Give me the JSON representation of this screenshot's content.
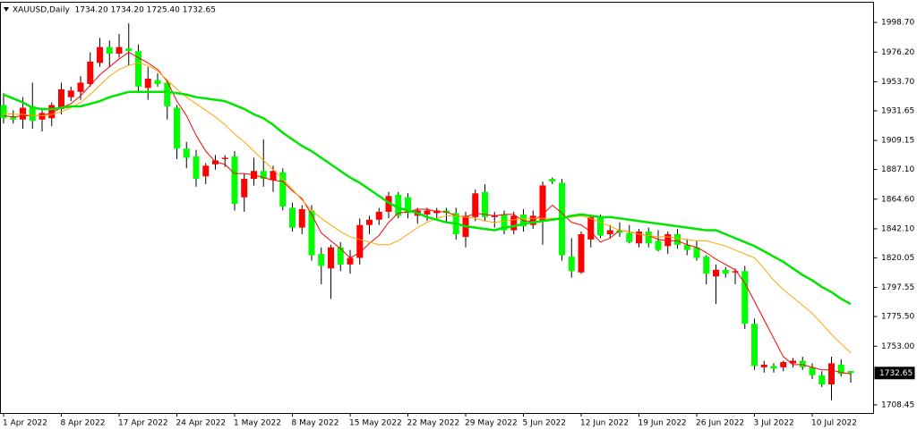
{
  "chart_data": {
    "type": "candlestick",
    "title": "XAUUSD,Daily  1734.20 1734.20 1725.40 1732.65",
    "categories": [
      "1 Apr 2022",
      null,
      null,
      null,
      null,
      null,
      "8 Apr 2022",
      null,
      null,
      null,
      null,
      null,
      "17 Apr 2022",
      null,
      null,
      null,
      null,
      null,
      "24 Apr 2022",
      null,
      null,
      null,
      null,
      null,
      "1 May 2022",
      null,
      null,
      null,
      null,
      null,
      "8 May 2022",
      null,
      null,
      null,
      null,
      null,
      "15 May 2022",
      null,
      null,
      null,
      null,
      null,
      "22 May 2022",
      null,
      null,
      null,
      null,
      null,
      "29 May 2022",
      null,
      null,
      null,
      null,
      null,
      "5 Jun 2022",
      null,
      null,
      null,
      null,
      null,
      "12 Jun 2022",
      null,
      null,
      null,
      null,
      null,
      "19 Jun 2022",
      null,
      null,
      null,
      null,
      null,
      "26 Jun 2022",
      null,
      null,
      null,
      null,
      null,
      "3 Jul 2022",
      null,
      null,
      null,
      null,
      null,
      "10 Jul 2022",
      null,
      null,
      null,
      null
    ],
    "open": [
      1936,
      1927,
      1925,
      1935,
      1925,
      1926,
      1933,
      1942,
      1946,
      1952,
      1968,
      1980,
      1975,
      1979,
      1977,
      1949,
      1955,
      1953,
      1934,
      1903,
      1897,
      1882,
      1891,
      1895,
      1897,
      1866,
      1880,
      1886,
      1879,
      1885,
      1858,
      1843,
      1856,
      1823,
      1812,
      1828,
      1815,
      1820,
      1845,
      1849,
      1855,
      1868,
      1866,
      1852,
      1853,
      1854,
      1856,
      1854,
      1836,
      1851,
      1870,
      1851,
      1853,
      1841,
      1853,
      1845,
      1848,
      1880,
      1877,
      1821,
      1809,
      1834,
      1851,
      1838,
      1841,
      1839,
      1831,
      1840,
      1833,
      1829,
      1838,
      1830,
      1828,
      1821,
      1806,
      1811,
      1809,
      1810,
      1770,
      1737,
      1738,
      1737,
      1740,
      1742,
      1737,
      1731,
      1724,
      1739,
      1734.2
    ],
    "high": [
      1945,
      1932,
      1942,
      1953,
      1934,
      1938,
      1953,
      1950,
      1958,
      1976,
      1987,
      1985,
      1990,
      1998,
      1982,
      1965,
      1960,
      1955,
      1936,
      1908,
      1902,
      1892,
      1898,
      1898,
      1901,
      1884,
      1896,
      1910,
      1890,
      1888,
      1862,
      1860,
      1860,
      1828,
      1830,
      1832,
      1826,
      1850,
      1852,
      1858,
      1870,
      1870,
      1869,
      1858,
      1858,
      1858,
      1858,
      1858,
      1855,
      1872,
      1876,
      1855,
      1856,
      1855,
      1857,
      1856,
      1878,
      1881,
      1880,
      1835,
      1840,
      1853,
      1853,
      1845,
      1847,
      1845,
      1842,
      1843,
      1841,
      1840,
      1842,
      1834,
      1833,
      1822,
      1815,
      1813,
      1812,
      1814,
      1774,
      1742,
      1740,
      1742,
      1744,
      1745,
      1740,
      1734,
      1745,
      1743,
      1734.2
    ],
    "low": [
      1922,
      1922,
      1918,
      1918,
      1916,
      1920,
      1929,
      1939,
      1940,
      1950,
      1965,
      1965,
      1972,
      1966,
      1945,
      1940,
      1950,
      1925,
      1895,
      1888,
      1874,
      1876,
      1887,
      1889,
      1856,
      1855,
      1875,
      1874,
      1870,
      1856,
      1840,
      1838,
      1818,
      1800,
      1789,
      1810,
      1808,
      1815,
      1838,
      1845,
      1850,
      1850,
      1850,
      1846,
      1848,
      1849,
      1847,
      1834,
      1828,
      1848,
      1848,
      1843,
      1838,
      1838,
      1840,
      1842,
      1830,
      1876,
      1818,
      1805,
      1808,
      1828,
      1835,
      1835,
      1836,
      1831,
      1828,
      1828,
      1825,
      1823,
      1827,
      1822,
      1818,
      1800,
      1785,
      1805,
      1800,
      1766,
      1735,
      1733,
      1733,
      1734,
      1737,
      1735,
      1728,
      1722,
      1712,
      1730,
      1725.4
    ],
    "close": [
      1926,
      1925,
      1934,
      1924,
      1930,
      1936,
      1948,
      1947,
      1953,
      1969,
      1980,
      1975,
      1980,
      1977,
      1950,
      1956,
      1952,
      1935,
      1903,
      1896,
      1880,
      1890,
      1894,
      1896,
      1861,
      1880,
      1886,
      1880,
      1886,
      1859,
      1843,
      1857,
      1822,
      1814,
      1828,
      1815,
      1820,
      1845,
      1849,
      1855,
      1867,
      1852,
      1854,
      1856,
      1856,
      1856,
      1854,
      1838,
      1852,
      1869,
      1851,
      1852,
      1841,
      1852,
      1844,
      1852,
      1875,
      1878,
      1822,
      1810,
      1838,
      1851,
      1837,
      1841,
      1839,
      1832,
      1840,
      1831,
      1826,
      1838,
      1830,
      1826,
      1820,
      1808,
      1811,
      1808,
      1810,
      1770,
      1738,
      1739,
      1736,
      1741,
      1742,
      1737,
      1731,
      1724,
      1740,
      1732,
      1732.65
    ],
    "bull_color": "#ff0000",
    "bear_color": "#00ff00",
    "wick_color": "#000000",
    "overlays": [
      {
        "color": "#ff0000",
        "values": [
          1928,
          1927,
          1928,
          1928,
          1928,
          1930,
          1934,
          1937,
          1943,
          1951,
          1959,
          1965,
          1971,
          1976,
          1972,
          1968,
          1963,
          1954,
          1939,
          1928,
          1913,
          1901,
          1893,
          1891,
          1884,
          1884,
          1883,
          1881,
          1879,
          1878,
          1871,
          1865,
          1853,
          1839,
          1833,
          1827,
          1820,
          1824,
          1831,
          1837,
          1847,
          1854,
          1855,
          1857,
          1857,
          1855,
          1855,
          1852,
          1851,
          1854,
          1853,
          1852,
          1853,
          1853,
          1848,
          1848,
          1853,
          1860,
          1854,
          1847,
          1845,
          1840,
          1832,
          1835,
          1841,
          1840,
          1838,
          1837,
          1834,
          1833,
          1833,
          1830,
          1828,
          1824,
          1819,
          1815,
          1811,
          1801,
          1787,
          1773,
          1759,
          1745,
          1739,
          1739,
          1737,
          1735,
          1735,
          1733,
          1732
        ]
      },
      {
        "color": "#ffa500",
        "values": [
          1930,
          1929,
          1929,
          1928,
          1928,
          1929,
          1931,
          1934,
          1938,
          1944,
          1951,
          1958,
          1963,
          1966,
          1968,
          1966,
          1962,
          1955,
          1948,
          1942,
          1937,
          1932,
          1927,
          1921,
          1914,
          1908,
          1901,
          1894,
          1887,
          1880,
          1872,
          1864,
          1856,
          1850,
          1845,
          1840,
          1836,
          1834,
          1832,
          1830,
          1830,
          1833,
          1838,
          1843,
          1847,
          1850,
          1852,
          1852,
          1851,
          1850,
          1848,
          1847,
          1848,
          1849,
          1850,
          1850,
          1850,
          1850,
          1850,
          1851,
          1852,
          1850,
          1847,
          1844,
          1841,
          1840,
          1838,
          1837,
          1836,
          1836,
          1835,
          1834,
          1833,
          1833,
          1831,
          1829,
          1826,
          1823,
          1820,
          1812,
          1803,
          1796,
          1790,
          1784,
          1778,
          1770,
          1762,
          1755,
          1748
        ]
      },
      {
        "color": "#00e600",
        "values": [
          1944,
          1941,
          1938,
          1934,
          1933,
          1933,
          1934,
          1935,
          1935,
          1937,
          1939,
          1942,
          1944,
          1946,
          1946,
          1946,
          1946,
          1946,
          1945,
          1944,
          1942,
          1941,
          1940,
          1939,
          1936,
          1933,
          1929,
          1926,
          1921,
          1915,
          1910,
          1905,
          1901,
          1896,
          1891,
          1886,
          1881,
          1877,
          1872,
          1867,
          1862,
          1858,
          1856,
          1854,
          1851,
          1849,
          1847,
          1846,
          1844,
          1843,
          1842,
          1841,
          1843,
          1844,
          1846,
          1847,
          1848,
          1849,
          1850,
          1852,
          1853,
          1852,
          1851,
          1851,
          1850,
          1849,
          1848,
          1847,
          1846,
          1845,
          1844,
          1843,
          1842,
          1841,
          1841,
          1838,
          1835,
          1832,
          1829,
          1825,
          1821,
          1817,
          1812,
          1807,
          1803,
          1798,
          1794,
          1789,
          1785
        ]
      }
    ],
    "ylim": [
      1702.3,
      2013.7
    ],
    "yticks": [
      {
        "value": 1998.7,
        "label": "1998.70"
      },
      {
        "value": 1976.2,
        "label": "1976.20"
      },
      {
        "value": 1953.7,
        "label": "1953.70"
      },
      {
        "value": 1931.65,
        "label": "1931.65"
      },
      {
        "value": 1909.15,
        "label": "1909.15"
      },
      {
        "value": 1887.1,
        "label": "1887.10"
      },
      {
        "value": 1864.6,
        "label": "1864.60"
      },
      {
        "value": 1842.1,
        "label": "1842.10"
      },
      {
        "value": 1820.05,
        "label": "1820.05"
      },
      {
        "value": 1797.55,
        "label": "1797.55"
      },
      {
        "value": 1775.5,
        "label": "1775.50"
      },
      {
        "value": 1753,
        "label": "1753.00"
      },
      {
        "value": 1708.45,
        "label": "1708.45"
      }
    ],
    "price_label": {
      "value": 1732.65,
      "label": "1732.65"
    },
    "grid": false
  }
}
